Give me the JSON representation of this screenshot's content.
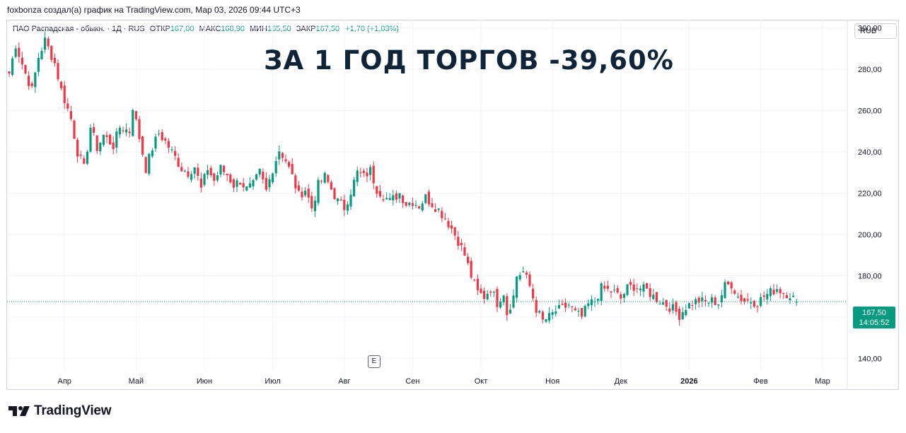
{
  "caption": "foxbonza создал(а) график на TradingView.com, Мар 03, 2026 09:44 UTC+3",
  "legend": {
    "symbol": "ПАО Распадская - обыкн. · 1Д · RUS",
    "open_label": "ОТКР",
    "open": "167,00",
    "high_label": "МАКС",
    "high": "168,90",
    "low_label": "МИН",
    "low": "165,50",
    "close_label": "ЗАКР",
    "close": "167,50",
    "change": "+1,70 (+1,03%)"
  },
  "currency": "RUB",
  "headline": "ЗА 1 ГОД ТОРГОВ -39,60%",
  "price_tag": {
    "price": "167,50",
    "countdown": "14:05:52"
  },
  "event_marker": "E",
  "brand": "TradingView",
  "colors": {
    "up": "#089981",
    "down": "#f23645",
    "grid": "#f0f3fa",
    "headline": "#0f2537"
  },
  "chart_data": {
    "type": "candlestick",
    "ylim": [
      134,
      304
    ],
    "y_ticks": [
      "140,00",
      "160,00",
      "180,00",
      "200,00",
      "220,00",
      "240,00",
      "260,00",
      "280,00",
      "300,00"
    ],
    "y_tick_values": [
      140,
      160,
      180,
      200,
      220,
      240,
      260,
      280,
      300
    ],
    "x_ticks": [
      {
        "label": "Апр",
        "t": 17,
        "bold": false
      },
      {
        "label": "Май",
        "t": 39,
        "bold": false
      },
      {
        "label": "Июн",
        "t": 60,
        "bold": false
      },
      {
        "label": "Июл",
        "t": 81,
        "bold": false
      },
      {
        "label": "Авг",
        "t": 103,
        "bold": false
      },
      {
        "label": "Сен",
        "t": 124,
        "bold": false
      },
      {
        "label": "Окт",
        "t": 145,
        "bold": false
      },
      {
        "label": "Ноя",
        "t": 167,
        "bold": false
      },
      {
        "label": "Дек",
        "t": 188,
        "bold": false
      },
      {
        "label": "2026",
        "t": 209,
        "bold": true
      },
      {
        "label": "Фев",
        "t": 231,
        "bold": false
      },
      {
        "label": "Мар",
        "t": 250,
        "bold": false
      }
    ],
    "anchors": [
      [
        0,
        278
      ],
      [
        2,
        292
      ],
      [
        5,
        278
      ],
      [
        7,
        270
      ],
      [
        9,
        286
      ],
      [
        11,
        294
      ],
      [
        14,
        283
      ],
      [
        16,
        270
      ],
      [
        19,
        256
      ],
      [
        21,
        240
      ],
      [
        23,
        232
      ],
      [
        25,
        252
      ],
      [
        27,
        242
      ],
      [
        29,
        248
      ],
      [
        32,
        243
      ],
      [
        34,
        252
      ],
      [
        37,
        250
      ],
      [
        38,
        262
      ],
      [
        40,
        247
      ],
      [
        42,
        232
      ],
      [
        44,
        242
      ],
      [
        46,
        249
      ],
      [
        48,
        245
      ],
      [
        50,
        240
      ],
      [
        53,
        232
      ],
      [
        55,
        230
      ],
      [
        57,
        233
      ],
      [
        59,
        222
      ],
      [
        61,
        232
      ],
      [
        63,
        226
      ],
      [
        65,
        232
      ],
      [
        67,
        229
      ],
      [
        69,
        224
      ],
      [
        71,
        226
      ],
      [
        73,
        222
      ],
      [
        75,
        224
      ],
      [
        77,
        230
      ],
      [
        79,
        221
      ],
      [
        81,
        232
      ],
      [
        83,
        241
      ],
      [
        85,
        236
      ],
      [
        87,
        228
      ],
      [
        89,
        219
      ],
      [
        91,
        222
      ],
      [
        93,
        213
      ],
      [
        95,
        224
      ],
      [
        97,
        228
      ],
      [
        99,
        222
      ],
      [
        101,
        216
      ],
      [
        103,
        213
      ],
      [
        105,
        221
      ],
      [
        107,
        230
      ],
      [
        109,
        228
      ],
      [
        111,
        231
      ],
      [
        113,
        222
      ],
      [
        115,
        219
      ],
      [
        117,
        216
      ],
      [
        120,
        220
      ],
      [
        122,
        215
      ],
      [
        124,
        216
      ],
      [
        126,
        214
      ],
      [
        128,
        218
      ],
      [
        130,
        215
      ],
      [
        132,
        212
      ],
      [
        134,
        208
      ],
      [
        136,
        203
      ],
      [
        138,
        197
      ],
      [
        140,
        190
      ],
      [
        142,
        180
      ],
      [
        144,
        172
      ],
      [
        146,
        170
      ],
      [
        148,
        174
      ],
      [
        150,
        167
      ],
      [
        152,
        172
      ],
      [
        153,
        162
      ],
      [
        155,
        170
      ],
      [
        156,
        180
      ],
      [
        158,
        182
      ],
      [
        160,
        175
      ],
      [
        162,
        164
      ],
      [
        164,
        158
      ],
      [
        166,
        160
      ],
      [
        168,
        163
      ],
      [
        170,
        164
      ],
      [
        172,
        166
      ],
      [
        174,
        162
      ],
      [
        176,
        160
      ],
      [
        178,
        166
      ],
      [
        180,
        168
      ],
      [
        182,
        174
      ],
      [
        184,
        173
      ],
      [
        186,
        172
      ],
      [
        188,
        169
      ],
      [
        190,
        174
      ],
      [
        192,
        175
      ],
      [
        194,
        174
      ],
      [
        196,
        173
      ],
      [
        198,
        170
      ],
      [
        200,
        168
      ],
      [
        202,
        166
      ],
      [
        204,
        164
      ],
      [
        206,
        161
      ],
      [
        208,
        165
      ],
      [
        210,
        167
      ],
      [
        212,
        168
      ],
      [
        214,
        167
      ],
      [
        216,
        168
      ],
      [
        218,
        167
      ],
      [
        220,
        175
      ],
      [
        222,
        176
      ],
      [
        224,
        170
      ],
      [
        226,
        168
      ],
      [
        228,
        168
      ],
      [
        230,
        167
      ],
      [
        232,
        170
      ],
      [
        234,
        172
      ],
      [
        236,
        174
      ],
      [
        238,
        172
      ],
      [
        240,
        171
      ],
      [
        242,
        167.5
      ]
    ],
    "last": {
      "open": 167.0,
      "high": 168.9,
      "low": 165.5,
      "close": 167.5
    }
  }
}
